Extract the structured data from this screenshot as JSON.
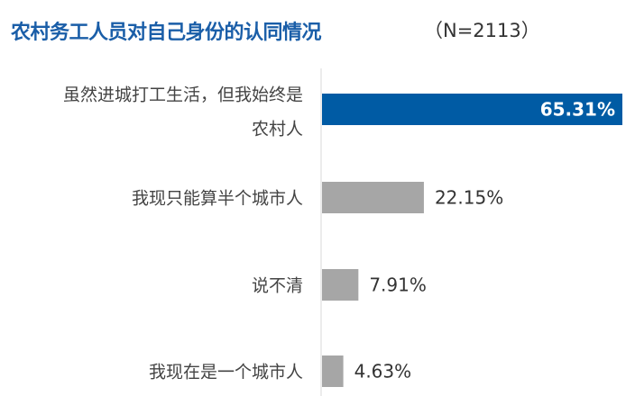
{
  "chart_data": {
    "type": "bar",
    "orientation": "horizontal",
    "title": "农村务工人员对自己身份的认同情况",
    "subtitle": "（N=2113）",
    "categories": [
      [
        "虽然进城打工生活，但我始终是",
        "农村人"
      ],
      [
        "我现只能算半个城市人"
      ],
      [
        "说不清"
      ],
      [
        "我现在是一个城市人"
      ]
    ],
    "values": [
      65.31,
      22.15,
      7.91,
      4.63
    ],
    "labels": [
      "65.31%",
      "22.15%",
      "7.91%",
      "4.63%"
    ],
    "unit": "%",
    "xlim": [
      0,
      66
    ],
    "grid": false,
    "colors": {
      "highlight": "#005ba4",
      "default": "#a6a6a6",
      "title": "#1a5ea8"
    }
  }
}
